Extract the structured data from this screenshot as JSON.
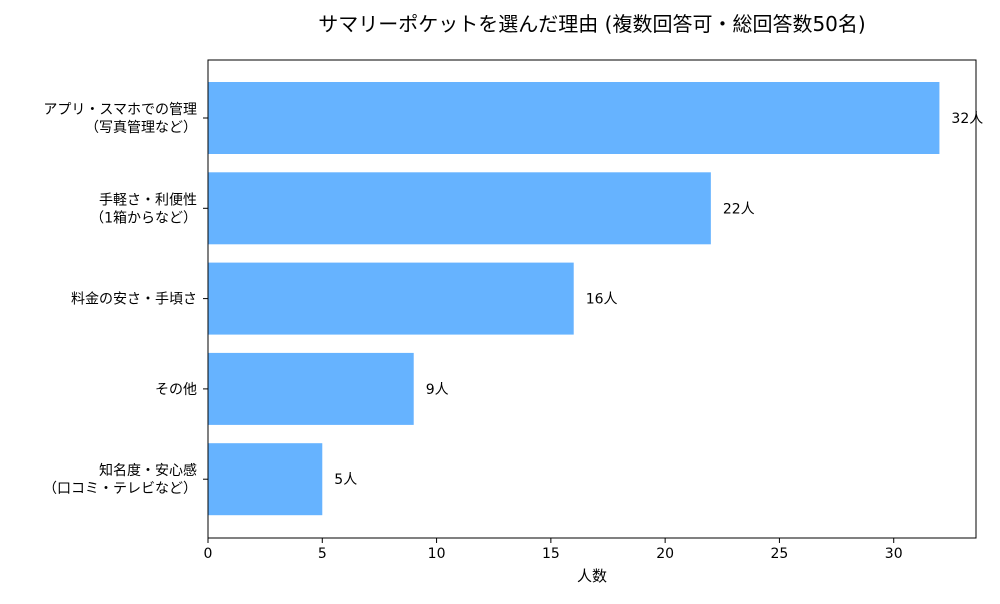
{
  "chart_data": {
    "type": "bar",
    "orientation": "horizontal",
    "title": "サマリーポケットを選んだ理由 (複数回答可・総回答数50名)",
    "xlabel": "人数",
    "ylabel": "",
    "categories": [
      [
        "アプリ・スマホでの管理",
        "（写真管理など）"
      ],
      [
        "手軽さ・利便性",
        "（1箱からなど）"
      ],
      [
        "料金の安さ・手頃さ"
      ],
      [
        "その他"
      ],
      [
        "知名度・安心感",
        "（口コミ・テレビなど）"
      ]
    ],
    "values": [
      32,
      22,
      16,
      9,
      5
    ],
    "data_labels": [
      "32人",
      "22人",
      "16人",
      "9人",
      "5人"
    ],
    "xlim": [
      0,
      33.6
    ],
    "xticks": [
      0,
      5,
      10,
      15,
      20,
      25,
      30
    ],
    "grid": false,
    "legend": "none",
    "colors": {
      "bar": "#66b3ff",
      "axis": "#000000",
      "text": "#000000"
    }
  }
}
